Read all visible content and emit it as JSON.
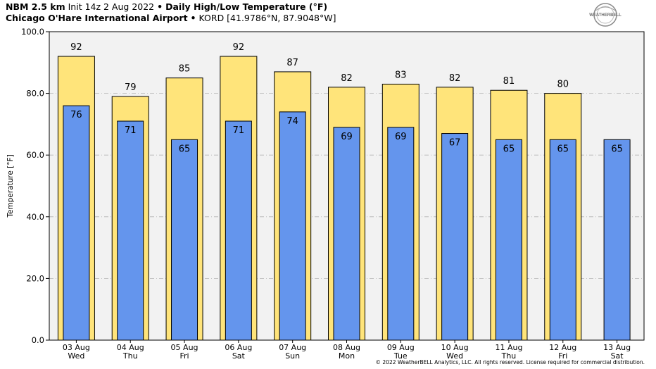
{
  "header": {
    "line1_model": "NBM 2.5 km",
    "line1_init": "Init 14z 2 Aug 2022",
    "line1_sep": "•",
    "line1_product": "Daily High/Low Temperature (°F)",
    "line2_station": "Chicago O'Hare International Airport",
    "line2_sep": "•",
    "line2_coords": "KORD [41.9786°N, 87.9048°W]"
  },
  "logo": {
    "text_main": "WEATHERBELL",
    "icon": "weatherbell-logo-icon"
  },
  "footer": {
    "copyright": "© 2022 WeatherBELL Analytics, LLC. All rights reserved. License required for commercial distribution."
  },
  "colors": {
    "plot_background": "#f2f2f2",
    "high_bar": "#ffe47a",
    "low_bar": "#6495ed",
    "bar_edge": "#000000",
    "grid": "#b4b4b4"
  },
  "chart_data": {
    "type": "bar",
    "ylabel": "Temperature [°F]",
    "ylim": [
      0,
      100
    ],
    "yticks": [
      0,
      20,
      40,
      60,
      80,
      100
    ],
    "ytick_labels": [
      "0.0",
      "20.0",
      "40.0",
      "60.0",
      "80.0",
      "100.0"
    ],
    "grid": true,
    "categories": [
      [
        "03 Aug",
        "Wed"
      ],
      [
        "04 Aug",
        "Thu"
      ],
      [
        "05 Aug",
        "Fri"
      ],
      [
        "06 Aug",
        "Sat"
      ],
      [
        "07 Aug",
        "Sun"
      ],
      [
        "08 Aug",
        "Mon"
      ],
      [
        "09 Aug",
        "Tue"
      ],
      [
        "10 Aug",
        "Wed"
      ],
      [
        "11 Aug",
        "Thu"
      ],
      [
        "12 Aug",
        "Fri"
      ],
      [
        "13 Aug",
        "Sat"
      ]
    ],
    "series": [
      {
        "values": [
          92,
          79,
          85,
          92,
          87,
          82,
          83,
          82,
          81,
          80,
          null
        ]
      },
      {
        "values": [
          76,
          71,
          65,
          71,
          74,
          69,
          69,
          67,
          65,
          65,
          65
        ]
      }
    ]
  }
}
